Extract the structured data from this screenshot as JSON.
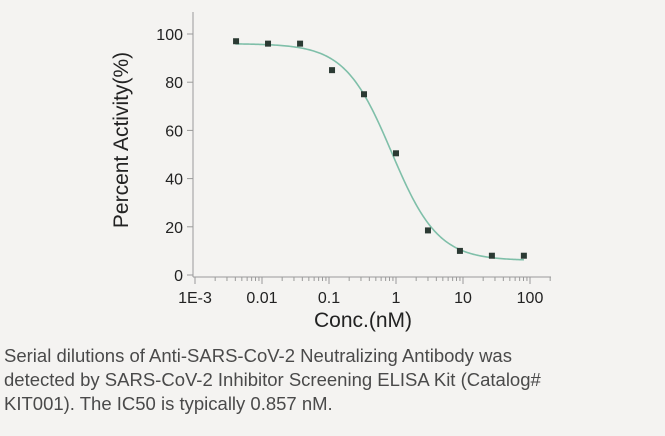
{
  "colors": {
    "background": "#f4f3f1",
    "curve": "#7fbfa9",
    "points": "#2b3a33",
    "axis": "#9a9a9a",
    "text": "#222222"
  },
  "chart_data": {
    "type": "scatter",
    "title": "",
    "xlabel": "Conc.(nM)",
    "ylabel": "Percent Activity(%)",
    "x_scale": "log",
    "xlim": [
      0.001,
      150
    ],
    "ylim": [
      0,
      110
    ],
    "x_ticks": [
      {
        "value": 0.001,
        "label": "1E-3"
      },
      {
        "value": 0.01,
        "label": "0.01"
      },
      {
        "value": 0.1,
        "label": "0.1"
      },
      {
        "value": 1,
        "label": "1"
      },
      {
        "value": 10,
        "label": "10"
      },
      {
        "value": 100,
        "label": "100"
      }
    ],
    "y_ticks": [
      {
        "value": 0,
        "label": "0"
      },
      {
        "value": 20,
        "label": "20"
      },
      {
        "value": 40,
        "label": "40"
      },
      {
        "value": 60,
        "label": "60"
      },
      {
        "value": 80,
        "label": "80"
      },
      {
        "value": 100,
        "label": "100"
      }
    ],
    "grid": false,
    "series": [
      {
        "points": [
          {
            "x": 0.0041,
            "y": 97
          },
          {
            "x": 0.0123,
            "y": 96
          },
          {
            "x": 0.037,
            "y": 96
          },
          {
            "x": 0.111,
            "y": 85
          },
          {
            "x": 0.333,
            "y": 75
          },
          {
            "x": 1.0,
            "y": 50.5
          },
          {
            "x": 3.0,
            "y": 18.5
          },
          {
            "x": 9.0,
            "y": 10
          },
          {
            "x": 27.0,
            "y": 8
          },
          {
            "x": 81.0,
            "y": 8
          }
        ]
      }
    ],
    "fit_curve": {
      "model": "4PL",
      "top": 96,
      "bottom": 6,
      "ic50": 0.857,
      "hill": 1.25,
      "x_range": [
        0.004,
        81
      ]
    }
  },
  "caption": "Serial dilutions of Anti-SARS-CoV-2 Neutralizing Antibody  was\ndetected by SARS-CoV-2 Inhibitor Screening ELISA Kit (Catalog#\nKIT001). The IC50 is typically 0.857 nM."
}
